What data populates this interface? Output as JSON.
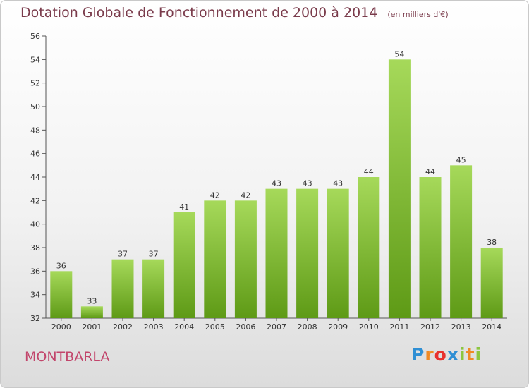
{
  "title": "Dotation Globale de Fonctionnement de 2000 à 2014",
  "unit": "(en milliers d'€)",
  "commune": "MONTBARLA",
  "logo": {
    "text": "Proxiti",
    "letters": [
      {
        "char": "P",
        "color": "#2f8fd4"
      },
      {
        "char": "r",
        "color": "#f08a24"
      },
      {
        "char": "o",
        "color": "#e8322f"
      },
      {
        "char": "x",
        "color": "#2f8fd4"
      },
      {
        "char": "i",
        "color": "#8cc63f"
      },
      {
        "char": "t",
        "color": "#f08a24"
      },
      {
        "char": "i",
        "color": "#8cc63f"
      }
    ]
  },
  "colors": {
    "title": "#7a3b4b",
    "commune": "#c2456b",
    "bar_top": "#a6d95a",
    "bar_bottom": "#5e9a16"
  },
  "chart_data": {
    "type": "bar",
    "categories": [
      "2000",
      "2001",
      "2002",
      "2003",
      "2004",
      "2005",
      "2006",
      "2007",
      "2008",
      "2009",
      "2010",
      "2011",
      "2012",
      "2013",
      "2014"
    ],
    "values": [
      36,
      33,
      37,
      37,
      41,
      42,
      42,
      43,
      43,
      43,
      44,
      54,
      44,
      45,
      38
    ],
    "ylim": [
      32,
      56
    ],
    "yticks": [
      32,
      34,
      36,
      38,
      40,
      42,
      44,
      46,
      48,
      50,
      52,
      54,
      56
    ],
    "grid": false,
    "legend": "none"
  }
}
